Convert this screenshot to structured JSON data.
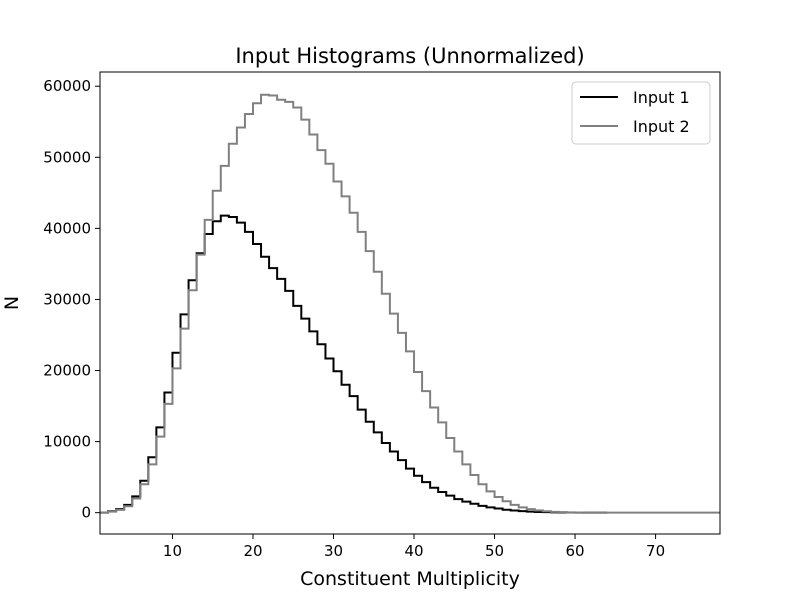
{
  "chart_data": {
    "type": "line",
    "drawstyle": "steps",
    "title": "Input Histograms (Unnormalized)",
    "xlabel": "Constituent Multiplicity",
    "ylabel": "N",
    "xlim": [
      1,
      78
    ],
    "ylim": [
      -3000,
      62000
    ],
    "xticks": [
      10,
      20,
      30,
      40,
      50,
      60,
      70
    ],
    "yticks": [
      0,
      10000,
      20000,
      30000,
      40000,
      50000,
      60000
    ],
    "grid": false,
    "legend": {
      "position": "top-right"
    },
    "series": [
      {
        "name": "Input 1",
        "color": "#000000",
        "x_start": 1,
        "bin_width": 1,
        "values": [
          0,
          200,
          500,
          1100,
          2300,
          4500,
          7800,
          12000,
          16900,
          22500,
          27900,
          32700,
          36500,
          39200,
          41000,
          41800,
          41600,
          40800,
          39500,
          37800,
          36000,
          34400,
          32900,
          31200,
          29100,
          27300,
          25500,
          23700,
          21700,
          19900,
          18000,
          16400,
          14500,
          12800,
          11300,
          9800,
          8600,
          7400,
          6200,
          5200,
          4300,
          3500,
          2900,
          2400,
          1900,
          1550,
          1250,
          950,
          750,
          580,
          420,
          300,
          220,
          150,
          100,
          70,
          45,
          30,
          18,
          10,
          6,
          3,
          0
        ]
      },
      {
        "name": "Input 2",
        "color": "#808080",
        "x_start": 1,
        "bin_width": 1,
        "values": [
          0,
          150,
          400,
          900,
          2000,
          4000,
          6800,
          10700,
          15300,
          20300,
          25900,
          31300,
          36300,
          41200,
          45300,
          48800,
          51900,
          54200,
          56100,
          57600,
          58800,
          58700,
          58100,
          57800,
          57000,
          55300,
          53200,
          51000,
          49100,
          46600,
          44500,
          42200,
          39500,
          36800,
          33900,
          30800,
          28000,
          25300,
          22700,
          19800,
          17100,
          14800,
          12700,
          10500,
          8600,
          6800,
          5300,
          4000,
          3000,
          2200,
          1600,
          1100,
          750,
          500,
          320,
          200,
          120,
          70,
          40,
          20,
          10,
          5,
          0,
          0,
          0,
          0,
          0,
          0,
          0,
          0,
          0,
          0,
          0,
          0,
          0,
          0,
          0,
          0
        ]
      }
    ]
  }
}
